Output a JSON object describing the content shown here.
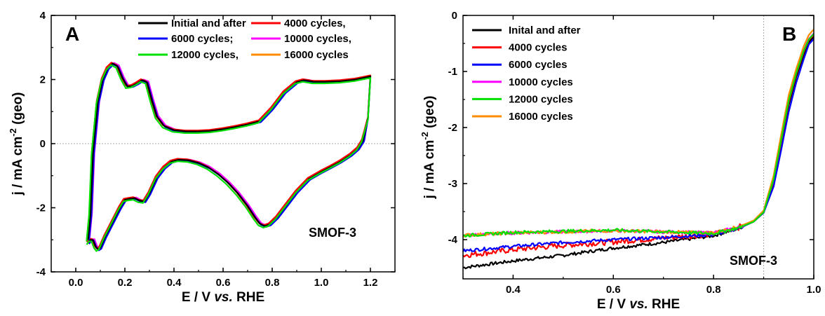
{
  "colors": {
    "initial": "#000000",
    "c4000": "#ff0000",
    "c6000": "#0000ff",
    "c10000": "#ff00ff",
    "c12000": "#00e000",
    "c16000": "#ff8c00",
    "zero_line": "#aaaaaa"
  },
  "chart_data": [
    {
      "type": "line",
      "panel_label": "A",
      "xlabel_parts": [
        "E / V ",
        "vs.",
        " RHE"
      ],
      "ylabel_parts": [
        "j / mA cm",
        "-2",
        " (geo)"
      ],
      "annotation": "SMOF-3",
      "xlim": [
        -0.1,
        1.3
      ],
      "ylim": [
        -4,
        4
      ],
      "xticks": [
        0.0,
        0.2,
        0.4,
        0.6,
        0.8,
        1.0,
        1.2
      ],
      "xtick_labels": [
        "0.0",
        "0.2",
        "0.4",
        "0.6",
        "0.8",
        "1.0",
        "1.2"
      ],
      "yticks": [
        -4,
        -2,
        0,
        2,
        4
      ],
      "ytick_labels": [
        "-4",
        "-2",
        "0",
        "2",
        "4"
      ],
      "hline": 0,
      "legend_placement": "top-right, 3 rows x 2 columns",
      "series": [
        {
          "name": "Initial and after",
          "color_key": "initial"
        },
        {
          "name": "4000 cycles,",
          "color_key": "c4000"
        },
        {
          "name": "6000 cycles;",
          "color_key": "c6000"
        },
        {
          "name": "10000 cycles,",
          "color_key": "c10000"
        },
        {
          "name": "12000 cycles,",
          "color_key": "c12000"
        },
        {
          "name": "16000 cycles",
          "color_key": "c16000"
        }
      ],
      "curve_anodic": {
        "x": [
          0.05,
          0.06,
          0.07,
          0.09,
          0.11,
          0.13,
          0.15,
          0.17,
          0.19,
          0.21,
          0.23,
          0.25,
          0.27,
          0.29,
          0.31,
          0.33,
          0.36,
          0.4,
          0.45,
          0.5,
          0.55,
          0.6,
          0.65,
          0.7,
          0.75,
          0.8,
          0.85,
          0.9,
          0.93,
          0.97,
          1.02,
          1.08,
          1.14,
          1.2
        ],
        "y": [
          -3.0,
          -2.2,
          -0.3,
          1.3,
          2.0,
          2.35,
          2.5,
          2.42,
          2.05,
          1.78,
          1.8,
          1.88,
          1.98,
          1.92,
          1.35,
          0.85,
          0.55,
          0.42,
          0.38,
          0.38,
          0.4,
          0.45,
          0.52,
          0.6,
          0.7,
          1.1,
          1.6,
          1.92,
          1.98,
          1.93,
          1.93,
          1.95,
          2.0,
          2.1
        ]
      },
      "curve_cathodic": {
        "x": [
          1.2,
          1.19,
          1.17,
          1.15,
          1.12,
          1.08,
          1.04,
          1.0,
          0.95,
          0.9,
          0.86,
          0.82,
          0.79,
          0.77,
          0.75,
          0.73,
          0.7,
          0.66,
          0.62,
          0.58,
          0.54,
          0.5,
          0.46,
          0.42,
          0.39,
          0.36,
          0.33,
          0.3,
          0.28,
          0.26,
          0.24,
          0.22,
          0.2,
          0.18,
          0.16,
          0.14,
          0.12,
          0.1,
          0.09,
          0.08,
          0.07,
          0.06,
          0.05
        ],
        "y": [
          2.1,
          0.8,
          0.1,
          -0.15,
          -0.35,
          -0.55,
          -0.72,
          -0.88,
          -1.1,
          -1.5,
          -1.9,
          -2.3,
          -2.52,
          -2.57,
          -2.5,
          -2.3,
          -1.95,
          -1.55,
          -1.22,
          -0.95,
          -0.74,
          -0.6,
          -0.52,
          -0.5,
          -0.56,
          -0.75,
          -1.05,
          -1.55,
          -1.8,
          -1.78,
          -1.7,
          -1.72,
          -1.75,
          -2.0,
          -2.3,
          -2.6,
          -2.9,
          -3.25,
          -3.3,
          -3.2,
          -3.0,
          -3.0,
          -3.1
        ]
      },
      "curve_offsets": [
        {
          "dx": 0.0,
          "dy": 0.0
        },
        {
          "dx": -0.005,
          "dy": 0.03
        },
        {
          "dx": 0.004,
          "dy": -0.03
        },
        {
          "dx": 0.006,
          "dy": 0.02
        },
        {
          "dx": -0.006,
          "dy": -0.05
        },
        {
          "dx": 0.002,
          "dy": 0.0
        }
      ]
    },
    {
      "type": "line",
      "panel_label": "B",
      "xlabel_parts": [
        "E / V ",
        "vs.",
        " RHE"
      ],
      "ylabel_parts": [
        "j / mA cm",
        "-2",
        " (geo)"
      ],
      "annotation": "SMOF-3",
      "xlim": [
        0.3,
        1.0
      ],
      "ylim": [
        -4.7,
        0
      ],
      "xticks": [
        0.4,
        0.6,
        0.8,
        1.0
      ],
      "xtick_labels": [
        "0.4",
        "0.6",
        "0.8",
        "1.0"
      ],
      "yticks": [
        0,
        -1,
        -2,
        -3,
        -4
      ],
      "ytick_labels": [
        "0",
        "-1",
        "-2",
        "-3",
        "-4"
      ],
      "vline": 0.9,
      "legend_placement": "top-left",
      "series": [
        {
          "name": "Inital and after",
          "color_key": "initial",
          "x": [
            0.3,
            0.4,
            0.5,
            0.6,
            0.7,
            0.8,
            0.85,
            0.88,
            0.9,
            0.92,
            0.935,
            0.95,
            0.965,
            0.98,
            0.99,
            1.0
          ],
          "y": [
            -4.5,
            -4.38,
            -4.28,
            -4.15,
            -4.05,
            -3.93,
            -3.8,
            -3.68,
            -3.52,
            -3.0,
            -2.3,
            -1.6,
            -1.1,
            -0.7,
            -0.48,
            -0.38
          ]
        },
        {
          "name": "4000 cycles",
          "color_key": "c4000",
          "x": [
            0.3,
            0.4,
            0.5,
            0.6,
            0.7,
            0.8,
            0.85,
            0.88,
            0.9,
            0.92,
            0.935,
            0.95,
            0.965,
            0.98,
            0.99,
            1.0
          ],
          "y": [
            -4.28,
            -4.18,
            -4.1,
            -4.04,
            -3.97,
            -3.9,
            -3.78,
            -3.66,
            -3.5,
            -2.95,
            -2.25,
            -1.55,
            -1.05,
            -0.65,
            -0.44,
            -0.35
          ]
        },
        {
          "name": "6000 cycles",
          "color_key": "c6000",
          "x": [
            0.3,
            0.4,
            0.5,
            0.6,
            0.7,
            0.8,
            0.85,
            0.88,
            0.9,
            0.92,
            0.935,
            0.95,
            0.965,
            0.98,
            0.99,
            1.0
          ],
          "y": [
            -4.2,
            -4.12,
            -4.05,
            -4.0,
            -3.96,
            -3.91,
            -3.8,
            -3.68,
            -3.52,
            -3.05,
            -2.4,
            -1.72,
            -1.2,
            -0.78,
            -0.52,
            -0.42
          ]
        },
        {
          "name": "10000 cycles",
          "color_key": "c10000",
          "x": [
            0.3,
            0.4,
            0.5,
            0.6,
            0.7,
            0.8,
            0.85,
            0.88,
            0.9,
            0.92,
            0.935,
            0.95,
            0.965,
            0.98,
            0.99,
            1.0
          ],
          "y": [
            -3.92,
            -3.88,
            -3.86,
            -3.84,
            -3.86,
            -3.88,
            -3.78,
            -3.67,
            -3.5,
            -2.9,
            -2.2,
            -1.5,
            -1.02,
            -0.62,
            -0.42,
            -0.32
          ]
        },
        {
          "name": "12000 cycles",
          "color_key": "c12000",
          "x": [
            0.3,
            0.4,
            0.5,
            0.6,
            0.7,
            0.8,
            0.85,
            0.88,
            0.9,
            0.92,
            0.935,
            0.95,
            0.965,
            0.98,
            0.99,
            1.0
          ],
          "y": [
            -3.93,
            -3.87,
            -3.85,
            -3.83,
            -3.86,
            -3.89,
            -3.79,
            -3.68,
            -3.51,
            -2.92,
            -2.22,
            -1.52,
            -1.03,
            -0.63,
            -0.43,
            -0.33
          ]
        },
        {
          "name": "16000 cycles",
          "color_key": "c16000",
          "x": [
            0.3,
            0.4,
            0.5,
            0.6,
            0.7,
            0.8,
            0.85,
            0.88,
            0.9,
            0.92,
            0.935,
            0.95,
            0.965,
            0.98,
            0.99,
            1.0
          ],
          "y": [
            -3.92,
            -3.88,
            -3.86,
            -3.84,
            -3.86,
            -3.88,
            -3.77,
            -3.66,
            -3.48,
            -2.85,
            -2.12,
            -1.42,
            -0.95,
            -0.55,
            -0.35,
            -0.25
          ]
        }
      ]
    }
  ]
}
